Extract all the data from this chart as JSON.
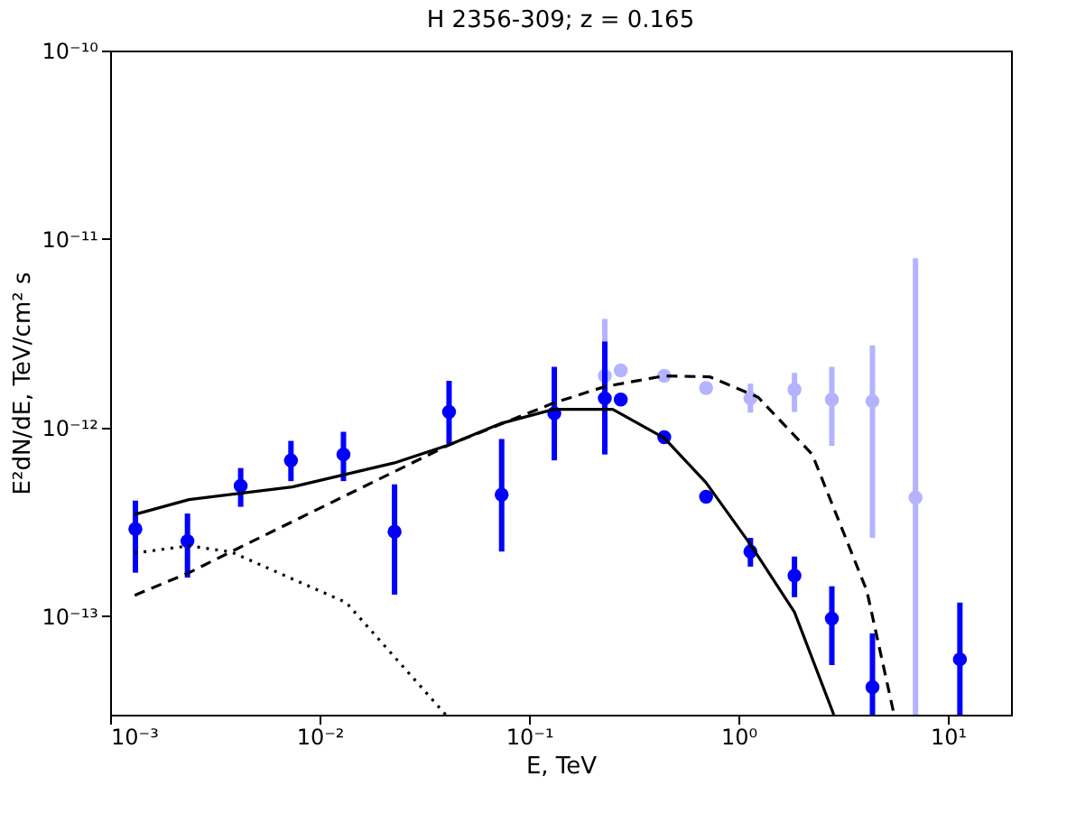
{
  "chart_data": {
    "type": "scatter",
    "title": "H 2356-309; z = 0.165",
    "xlabel": "E, TeV",
    "ylabel": "E²dN/dE, TeV/cm² s",
    "log": "xy",
    "grid": false,
    "xlim": [
      0.001,
      20
    ],
    "ylim": [
      3e-14,
      1e-10
    ],
    "xticks": [
      {
        "value": 0.001,
        "label": "10⁻³"
      },
      {
        "value": 0.01,
        "label": "10⁻²"
      },
      {
        "value": 0.1,
        "label": "10⁻¹"
      },
      {
        "value": 1,
        "label": "10⁰"
      },
      {
        "value": 10,
        "label": "10¹"
      }
    ],
    "yticks": [
      {
        "value": 1e-13,
        "label": "10⁻¹³"
      },
      {
        "value": 1e-12,
        "label": "10⁻¹²"
      },
      {
        "value": 1e-11,
        "label": "10⁻¹¹"
      },
      {
        "value": 1e-10,
        "label": "10⁻¹⁰"
      }
    ],
    "series": [
      {
        "marker": "circle",
        "color": "#b3b3ff",
        "x": [
          0.23,
          0.274,
          0.442,
          0.7,
          1.14,
          1.85,
          2.79,
          4.36,
          7.0
        ],
        "values": [
          1.88e-12,
          2.01e-12,
          1.88e-12,
          1.62e-12,
          1.43e-12,
          1.59e-12,
          1.41e-12,
          1.38e-12,
          4.25e-13
        ],
        "errors": [
          [
            9.4e-13,
            3.77e-12
          ],
          null,
          null,
          null,
          [
            1.2e-12,
            1.71e-12
          ],
          [
            1.21e-12,
            1.95e-12
          ],
          [
            8e-13,
            2.1e-12
          ],
          [
            2.6e-13,
            2.73e-12
          ],
          [
            3e-14,
            7.9e-12
          ]
        ]
      },
      {
        "marker": "circle",
        "color": "#0000ff",
        "x": [
          0.00132,
          0.00234,
          0.0042,
          0.0073,
          0.013,
          0.0228,
          0.0415,
          0.074,
          0.132,
          0.23,
          0.274,
          0.442,
          0.7,
          1.14,
          1.85,
          2.79,
          4.36,
          11.4
        ],
        "values": [
          2.9e-13,
          2.5e-13,
          4.9e-13,
          6.7e-13,
          7.2e-13,
          2.8e-13,
          1.21e-12,
          4.4e-13,
          1.19e-12,
          1.43e-12,
          1.41e-12,
          8.9e-13,
          4.3e-13,
          2.2e-13,
          1.64e-13,
          9.7e-14,
          4.2e-14,
          5.9e-14
        ],
        "errors": [
          [
            1.7e-13,
            4.1e-13
          ],
          [
            1.6e-13,
            3.5e-13
          ],
          [
            3.8e-13,
            6.1e-13
          ],
          [
            5.2e-13,
            8.5e-13
          ],
          [
            5.2e-13,
            9.5e-13
          ],
          [
            1.3e-13,
            5e-13
          ],
          [
            8.2e-13,
            1.77e-12
          ],
          [
            2.2e-13,
            8.7e-13
          ],
          [
            6.7e-13,
            2.1e-12
          ],
          [
            7.2e-13,
            2.86e-12
          ],
          null,
          null,
          null,
          [
            1.83e-13,
            2.6e-13
          ],
          [
            1.26e-13,
            2.07e-13
          ],
          [
            5.5e-14,
            1.44e-13
          ],
          [
            3e-14,
            8.1e-14
          ],
          [
            3e-14,
            1.18e-13
          ]
        ]
      },
      {
        "type": "line",
        "marker": "none",
        "color": "#000000",
        "line_style": "solid",
        "x": [
          0.00131,
          0.00238,
          0.0074,
          0.0228,
          0.0415,
          0.073,
          0.131,
          0.251,
          0.442,
          0.7,
          1.14,
          1.85,
          2.85
        ],
        "values": [
          3.46e-13,
          4.15e-13,
          4.84e-13,
          6.5e-13,
          8.1e-13,
          1.05e-12,
          1.25e-12,
          1.25e-12,
          8.8e-13,
          5.1e-13,
          2.4e-13,
          1.05e-13,
          3e-14
        ]
      },
      {
        "type": "line",
        "marker": "none",
        "color": "#000000",
        "line_style": "dashed",
        "x": [
          0.00131,
          0.00238,
          0.00405,
          0.0415,
          0.131,
          0.23,
          0.442,
          0.728,
          1.24,
          2.25,
          4.1,
          5.53
        ],
        "values": [
          1.29e-13,
          1.7e-13,
          2.28e-13,
          8.1e-13,
          1.35e-12,
          1.65e-12,
          1.88e-12,
          1.86e-12,
          1.45e-12,
          7.2e-13,
          1.36e-13,
          3e-14
        ]
      },
      {
        "type": "line",
        "marker": "none",
        "color": "#000000",
        "line_style": "dotted",
        "x": [
          0.00131,
          0.00238,
          0.00378,
          0.0134,
          0.04
        ],
        "values": [
          2.16e-13,
          2.36e-13,
          2.19e-13,
          1.18e-13,
          3e-14
        ]
      }
    ]
  }
}
